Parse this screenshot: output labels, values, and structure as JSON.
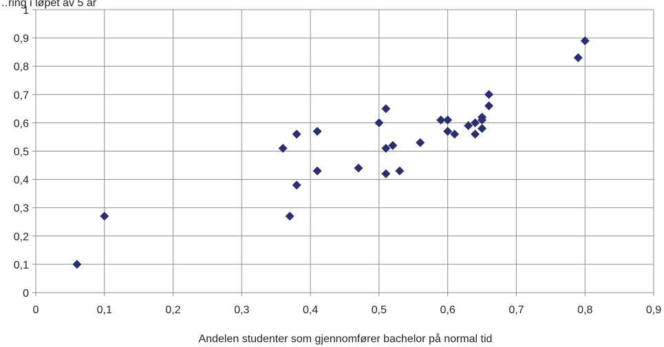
{
  "chart_data": {
    "type": "scatter",
    "title": "",
    "ylabel_partial": "…ring i løpet av 5 år",
    "xlabel": "Andelen studenter som gjennomfører bachelor på normal tid",
    "xlim": [
      0,
      0.9
    ],
    "ylim": [
      0,
      1
    ],
    "grid": true,
    "x_ticks": [
      "0",
      "0,1",
      "0,2",
      "0,3",
      "0,4",
      "0,5",
      "0,6",
      "0,7",
      "0,8",
      "0,9"
    ],
    "y_ticks": [
      "0",
      "0,1",
      "0,2",
      "0,3",
      "0,4",
      "0,5",
      "0,6",
      "0,7",
      "0,8",
      "0,9",
      "1"
    ],
    "marker_color": "#2b2e6e",
    "points": [
      {
        "x": 0.06,
        "y": 0.1
      },
      {
        "x": 0.1,
        "y": 0.27
      },
      {
        "x": 0.36,
        "y": 0.51
      },
      {
        "x": 0.37,
        "y": 0.27
      },
      {
        "x": 0.38,
        "y": 0.56
      },
      {
        "x": 0.38,
        "y": 0.38
      },
      {
        "x": 0.41,
        "y": 0.57
      },
      {
        "x": 0.41,
        "y": 0.43
      },
      {
        "x": 0.47,
        "y": 0.44
      },
      {
        "x": 0.5,
        "y": 0.6
      },
      {
        "x": 0.51,
        "y": 0.65
      },
      {
        "x": 0.51,
        "y": 0.51
      },
      {
        "x": 0.52,
        "y": 0.52
      },
      {
        "x": 0.51,
        "y": 0.42
      },
      {
        "x": 0.53,
        "y": 0.43
      },
      {
        "x": 0.56,
        "y": 0.53
      },
      {
        "x": 0.59,
        "y": 0.61
      },
      {
        "x": 0.6,
        "y": 0.61
      },
      {
        "x": 0.6,
        "y": 0.57
      },
      {
        "x": 0.61,
        "y": 0.56
      },
      {
        "x": 0.63,
        "y": 0.59
      },
      {
        "x": 0.64,
        "y": 0.6
      },
      {
        "x": 0.64,
        "y": 0.56
      },
      {
        "x": 0.65,
        "y": 0.61
      },
      {
        "x": 0.65,
        "y": 0.62
      },
      {
        "x": 0.65,
        "y": 0.58
      },
      {
        "x": 0.66,
        "y": 0.7
      },
      {
        "x": 0.66,
        "y": 0.66
      },
      {
        "x": 0.79,
        "y": 0.83
      },
      {
        "x": 0.8,
        "y": 0.89
      }
    ]
  }
}
